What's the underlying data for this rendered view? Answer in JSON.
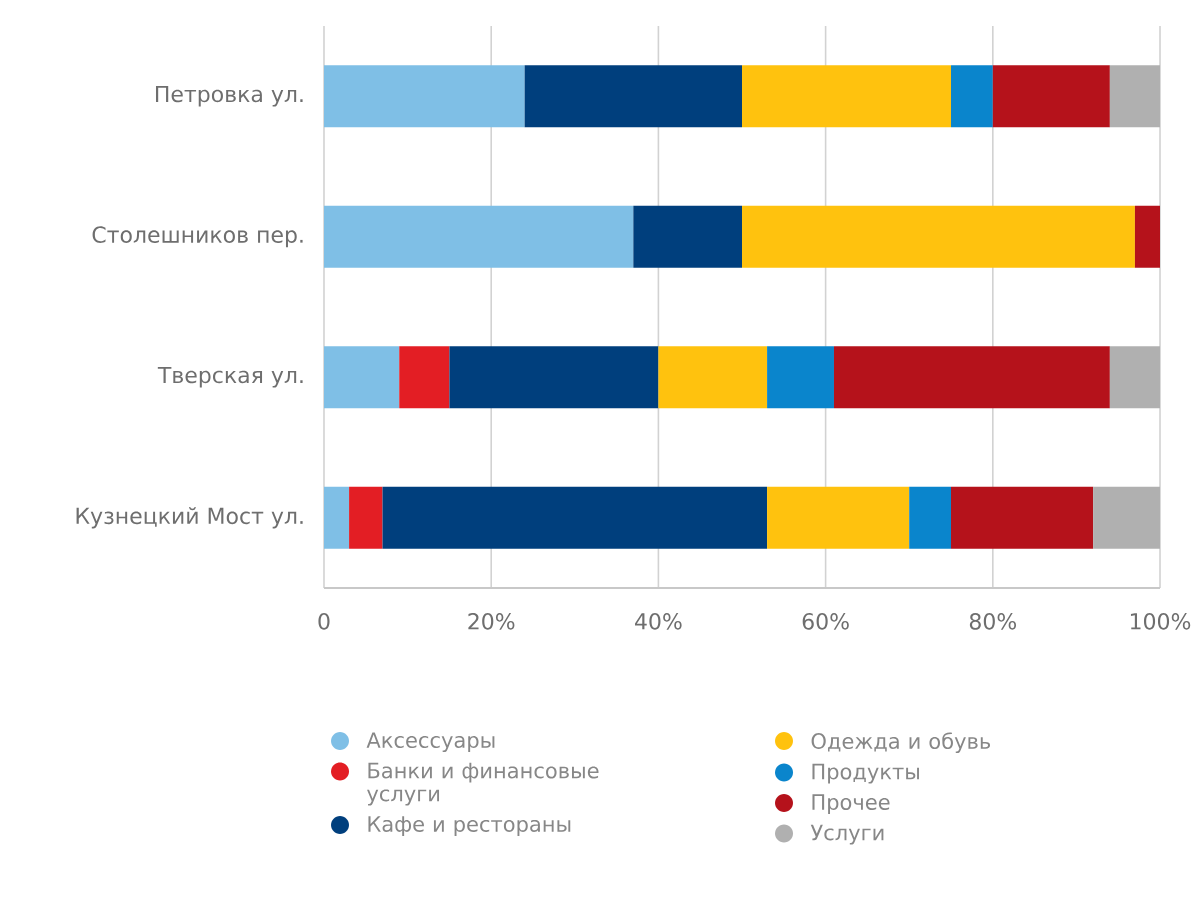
{
  "chart_data": {
    "type": "bar",
    "orientation": "horizontal",
    "stacked": true,
    "categories": [
      "Петровка ул.",
      "Столешников пер.",
      "Тверская ул.",
      "Кузнецкий Мост ул."
    ],
    "series": [
      {
        "name": "Аксессуары",
        "color": "#7fbfe6",
        "values": [
          24,
          37,
          9,
          3
        ]
      },
      {
        "name": "Банки и финансовые услуги",
        "color": "#e31e24",
        "values": [
          null,
          null,
          6,
          4
        ]
      },
      {
        "name": "Кафе и рестораны",
        "color": "#003f7d",
        "values": [
          26,
          13,
          25,
          46
        ]
      },
      {
        "name": "Одежда и обувь",
        "color": "#ffc20e",
        "values": [
          25,
          47,
          13,
          17
        ]
      },
      {
        "name": "Продукты",
        "color": "#0a85cc",
        "values": [
          5,
          null,
          8,
          5
        ]
      },
      {
        "name": "Прочее",
        "color": "#b5121b",
        "values": [
          14,
          3,
          33,
          17
        ]
      },
      {
        "name": "Услуги",
        "color": "#b0b0b0",
        "values": [
          6,
          null,
          6,
          8
        ]
      }
    ],
    "xlim": [
      0,
      100
    ],
    "xticks": [
      0,
      {
        "value": 20,
        "label": "20%"
      },
      {
        "value": 40,
        "label": "40%"
      },
      {
        "value": 60,
        "label": "60%"
      },
      {
        "value": 80,
        "label": "80%"
      },
      {
        "value": 100,
        "label": "100%"
      }
    ],
    "grid": "x",
    "legend": "bottom"
  }
}
